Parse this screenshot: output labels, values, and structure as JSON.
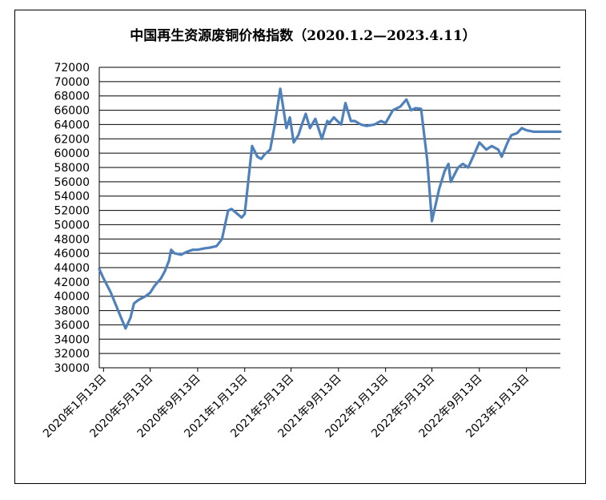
{
  "chart_data": {
    "type": "line",
    "title": "中国再生资源废铜价格指数（2020.1.2—2023.4.11）",
    "xlabel": "",
    "ylabel": "",
    "ylim": [
      30000,
      72000
    ],
    "y_ticks": [
      30000,
      32000,
      34000,
      36000,
      38000,
      40000,
      42000,
      44000,
      46000,
      48000,
      50000,
      52000,
      54000,
      56000,
      58000,
      60000,
      62000,
      64000,
      66000,
      68000,
      70000,
      72000
    ],
    "x_ticks": [
      "2020年1月13日",
      "2020年5月13日",
      "2020年9月13日",
      "2021年1月13日",
      "2021年5月13日",
      "2021年9月13日",
      "2022年1月13日",
      "2022年5月13日",
      "2022年9月13日",
      "2023年1月13日"
    ],
    "grid": true,
    "legend": "none",
    "line_color": "#4F81BD",
    "series": [
      {
        "x": [
          "2020-01-02",
          "2020-01-13",
          "2020-02-01",
          "2020-02-20",
          "2020-03-10",
          "2020-03-23",
          "2020-04-01",
          "2020-04-13",
          "2020-05-01",
          "2020-05-13",
          "2020-05-25",
          "2020-06-10",
          "2020-06-20",
          "2020-07-01",
          "2020-07-06",
          "2020-07-15",
          "2020-08-01",
          "2020-08-15",
          "2020-09-01",
          "2020-09-13",
          "2020-10-01",
          "2020-10-15",
          "2020-11-01",
          "2020-11-15",
          "2020-12-01",
          "2020-12-10",
          "2020-12-25",
          "2021-01-05",
          "2021-01-13",
          "2021-02-01",
          "2021-02-15",
          "2021-02-25",
          "2021-03-05",
          "2021-03-20",
          "2021-04-01",
          "2021-04-15",
          "2021-05-01",
          "2021-05-10",
          "2021-05-20",
          "2021-06-01",
          "2021-06-10",
          "2021-06-20",
          "2021-07-01",
          "2021-07-15",
          "2021-08-01",
          "2021-08-15",
          "2021-08-20",
          "2021-09-01",
          "2021-09-10",
          "2021-09-20",
          "2021-10-01",
          "2021-10-15",
          "2021-10-25",
          "2021-11-10",
          "2021-11-25",
          "2021-12-15",
          "2022-01-01",
          "2022-01-13",
          "2022-02-01",
          "2022-02-20",
          "2022-03-08",
          "2022-03-20",
          "2022-04-01",
          "2022-04-15",
          "2022-05-01",
          "2022-05-13",
          "2022-06-01",
          "2022-06-15",
          "2022-06-25",
          "2022-07-01",
          "2022-07-15",
          "2022-07-20",
          "2022-08-01",
          "2022-08-15",
          "2022-09-01",
          "2022-09-13",
          "2022-10-01",
          "2022-10-15",
          "2022-11-01",
          "2022-11-10",
          "2022-11-25",
          "2022-12-05",
          "2022-12-20",
          "2023-01-01",
          "2023-01-13",
          "2023-02-01",
          "2023-02-15",
          "2023-03-01",
          "2023-03-15",
          "2023-04-01",
          "2023-04-11"
        ],
        "y": [
          43800,
          42500,
          40500,
          38000,
          35500,
          37000,
          39000,
          39500,
          40000,
          40500,
          41500,
          42500,
          43500,
          45000,
          46500,
          46000,
          45800,
          46200,
          46500,
          46500,
          46700,
          46800,
          47000,
          48000,
          52000,
          52200,
          51500,
          51000,
          51500,
          61000,
          59500,
          59200,
          59800,
          60500,
          64000,
          69000,
          63500,
          65000,
          61500,
          62500,
          64000,
          65500,
          63500,
          64800,
          62000,
          64500,
          64200,
          65000,
          64500,
          64000,
          67000,
          64500,
          64500,
          64000,
          63800,
          64000,
          64500,
          64200,
          66000,
          66500,
          67500,
          66000,
          66300,
          66200,
          59000,
          50500,
          55000,
          57500,
          58500,
          56000,
          57500,
          58000,
          58500,
          58000,
          60000,
          61500,
          60500,
          61000,
          60500,
          59500,
          61500,
          62500,
          62800,
          63500,
          63200,
          63000,
          63000,
          63000,
          63000,
          63000,
          63000
        ]
      }
    ]
  }
}
